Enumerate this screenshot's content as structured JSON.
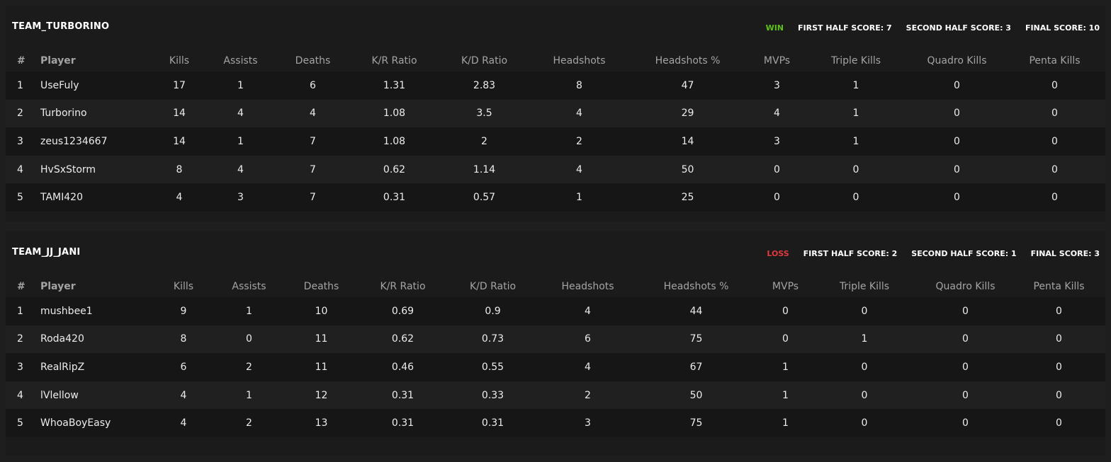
{
  "columns": [
    "#",
    "Player",
    "Kills",
    "Assists",
    "Deaths",
    "K/R Ratio",
    "K/D Ratio",
    "Headshots",
    "Headshots %",
    "MVPs",
    "Triple Kills",
    "Quadro Kills",
    "Penta Kills"
  ],
  "colors": {
    "win": "#5fc21a",
    "loss": "#e0393e",
    "background": "#1e1e1e",
    "panel": "#1b1b1b",
    "row_dark": "#161616",
    "row_light": "#202020"
  },
  "teams": [
    {
      "name": "TEAM_TURBORINO",
      "result": "WIN",
      "result_type": "win",
      "first_half": "FIRST HALF SCORE: 7",
      "second_half": "SECOND HALF SCORE: 3",
      "final": "FINAL SCORE: 10",
      "players": [
        [
          "1",
          "UseFuly",
          "17",
          "1",
          "6",
          "1.31",
          "2.83",
          "8",
          "47",
          "3",
          "1",
          "0",
          "0"
        ],
        [
          "2",
          "Turborino",
          "14",
          "4",
          "4",
          "1.08",
          "3.5",
          "4",
          "29",
          "4",
          "1",
          "0",
          "0"
        ],
        [
          "3",
          "zeus1234667",
          "14",
          "1",
          "7",
          "1.08",
          "2",
          "2",
          "14",
          "3",
          "1",
          "0",
          "0"
        ],
        [
          "4",
          "HvSxStorm",
          "8",
          "4",
          "7",
          "0.62",
          "1.14",
          "4",
          "50",
          "0",
          "0",
          "0",
          "0"
        ],
        [
          "5",
          "TAMI420",
          "4",
          "3",
          "7",
          "0.31",
          "0.57",
          "1",
          "25",
          "0",
          "0",
          "0",
          "0"
        ]
      ]
    },
    {
      "name": "TEAM_JJ_JANI",
      "result": "LOSS",
      "result_type": "loss",
      "first_half": "FIRST HALF SCORE: 2",
      "second_half": "SECOND HALF SCORE: 1",
      "final": "FINAL SCORE: 3",
      "players": [
        [
          "1",
          "mushbee1",
          "9",
          "1",
          "10",
          "0.69",
          "0.9",
          "4",
          "44",
          "0",
          "0",
          "0",
          "0"
        ],
        [
          "2",
          "Roda420",
          "8",
          "0",
          "11",
          "0.62",
          "0.73",
          "6",
          "75",
          "0",
          "1",
          "0",
          "0"
        ],
        [
          "3",
          "RealRipZ",
          "6",
          "2",
          "11",
          "0.46",
          "0.55",
          "4",
          "67",
          "1",
          "0",
          "0",
          "0"
        ],
        [
          "4",
          "lVlellow",
          "4",
          "1",
          "12",
          "0.31",
          "0.33",
          "2",
          "50",
          "1",
          "0",
          "0",
          "0"
        ],
        [
          "5",
          "WhoaBoyEasy",
          "4",
          "2",
          "13",
          "0.31",
          "0.31",
          "3",
          "75",
          "1",
          "0",
          "0",
          "0"
        ]
      ]
    }
  ]
}
